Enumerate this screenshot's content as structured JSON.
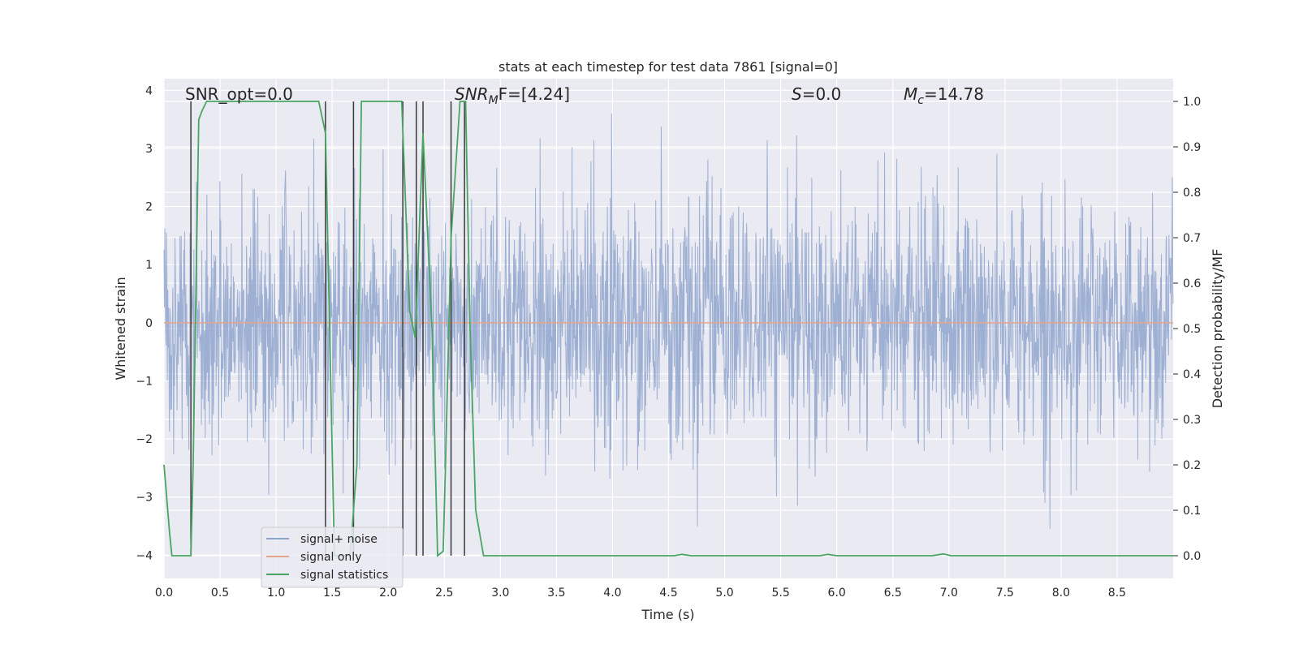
{
  "chart_data": {
    "type": "line",
    "title": "stats at each timestep for test data 7861 [signal=0]",
    "xlabel": "Time (s)",
    "ylabel_left": "Whitened strain",
    "ylabel_right": "Detection probability/MF",
    "xlim": [
      0,
      9.0
    ],
    "ylim_left": [
      -4.4,
      4.2
    ],
    "ylim_right": [
      -0.05,
      1.05
    ],
    "x_ticks": [
      "0.0",
      "0.5",
      "1.0",
      "1.5",
      "2.0",
      "2.5",
      "3.0",
      "3.5",
      "4.0",
      "4.5",
      "5.0",
      "5.5",
      "6.0",
      "6.5",
      "7.0",
      "7.5",
      "8.0",
      "8.5"
    ],
    "y_ticks_left": [
      "−4",
      "−3",
      "−2",
      "−1",
      "0",
      "1",
      "2",
      "3",
      "4"
    ],
    "y_ticks_right": [
      "0.0",
      "0.1",
      "0.2",
      "0.3",
      "0.4",
      "0.5",
      "0.6",
      "0.7",
      "0.8",
      "0.9",
      "1.0"
    ],
    "grid": true,
    "legend_position": "lower-left",
    "annotations": {
      "snr_opt": "SNR_opt=0.0",
      "snr_mf_base": "SNR",
      "snr_mf_sub": "M",
      "snr_mf_rest": "F=[4.24]",
      "s_label": "S",
      "s_value": "=0.0",
      "mc_base": "M",
      "mc_sub": "c",
      "mc_value": "=14.78"
    },
    "series": [
      {
        "name": "signal+ noise",
        "color": "#8fa4cc",
        "description_values": "noise band, typical amplitude about ±2, peaks near ±3.5"
      },
      {
        "name": "signal only",
        "color": "#e5a58c",
        "values_const": 0
      },
      {
        "name": "signal statistics",
        "color": "#4aa564",
        "x": [
          0.0,
          0.05,
          0.07,
          0.24,
          0.26,
          0.31,
          0.34,
          0.38,
          1.38,
          1.44,
          1.52,
          1.66,
          1.72,
          1.76,
          2.12,
          2.19,
          2.24,
          2.31,
          2.39,
          2.44,
          2.49,
          2.51,
          2.56,
          2.64,
          2.69,
          2.73,
          2.78,
          2.85,
          4.55,
          4.62,
          4.7,
          5.85,
          5.92,
          6.0,
          6.85,
          6.95,
          7.02,
          9.0
        ],
        "y": [
          0.2,
          0.05,
          0.0,
          0.0,
          0.2,
          0.96,
          0.98,
          1.0,
          1.0,
          0.93,
          0.0,
          0.0,
          0.2,
          1.0,
          1.0,
          0.54,
          0.48,
          0.93,
          0.5,
          0.0,
          0.01,
          0.2,
          0.7,
          1.0,
          1.0,
          0.5,
          0.1,
          0.0,
          0.0,
          0.003,
          0.0,
          0.0,
          0.003,
          0.0,
          0.0,
          0.004,
          0.0,
          0.0
        ]
      }
    ],
    "vlines_x": [
      0.24,
      1.44,
      1.69,
      2.13,
      2.25,
      2.31,
      2.56,
      2.68
    ],
    "vline_color": "#3a3a3a"
  }
}
